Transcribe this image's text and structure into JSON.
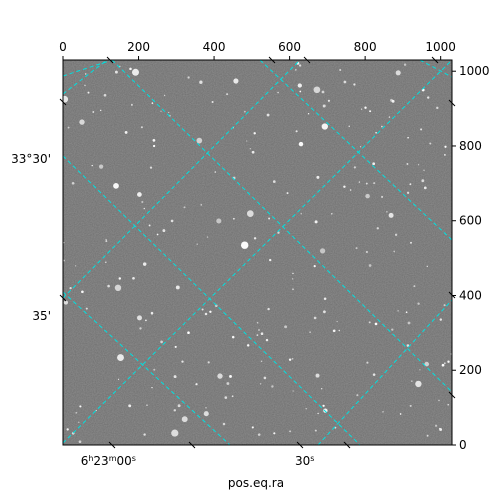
{
  "figure": {
    "x_axis_label": "pos.eq.ra",
    "top_ticks": [
      0,
      200,
      400,
      600,
      800,
      1000
    ],
    "right_ticks": [
      0,
      200,
      400,
      600,
      800,
      1000
    ],
    "pixel_range": [
      0,
      1030
    ],
    "ra_ticks": [
      {
        "label": "6h23m00s",
        "pixel": 120
      },
      {
        "label": "30s",
        "pixel": 640
      }
    ],
    "dec_ticks": [
      {
        "label": "33°30'",
        "pixel": 765
      },
      {
        "label": "35'",
        "pixel": 345
      }
    ]
  },
  "colors": {
    "background": "#ffffff",
    "sky": "#6e6e6e",
    "grid": "#00e0e0",
    "star": "#ffffff"
  }
}
